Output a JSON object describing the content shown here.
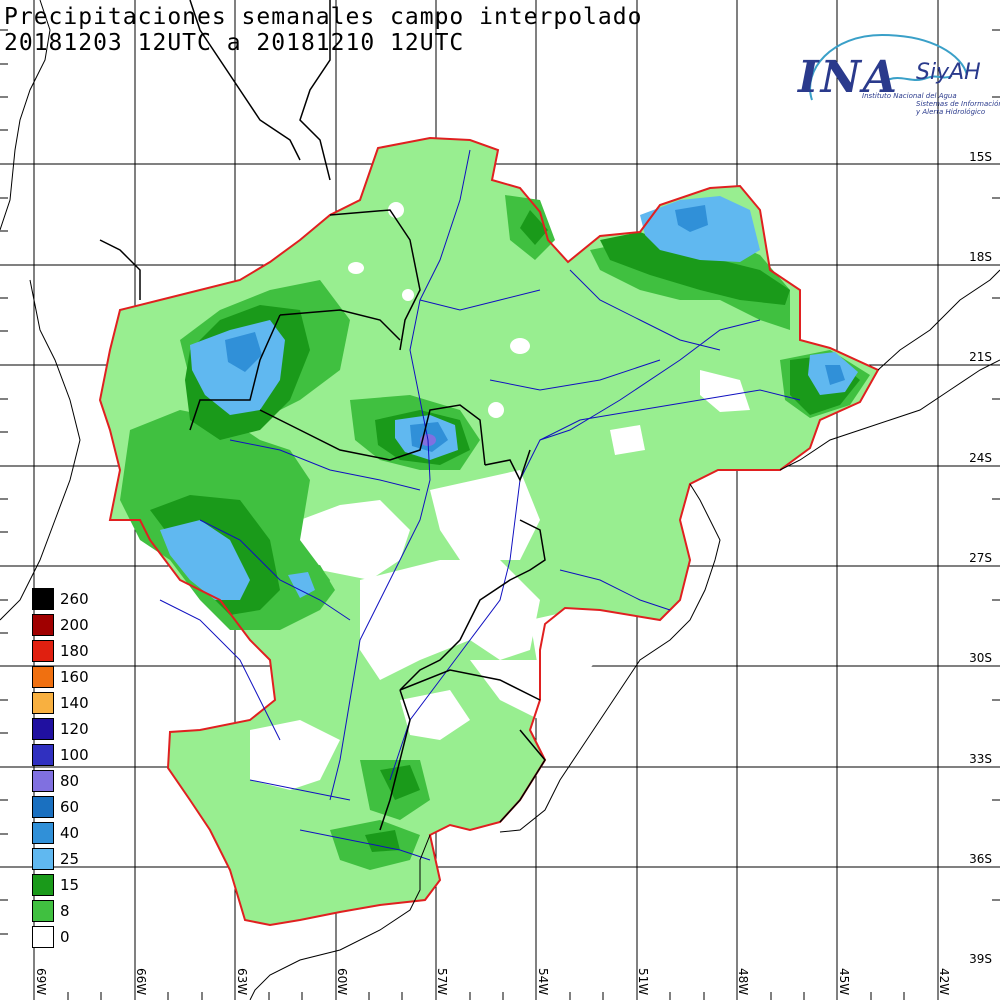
{
  "title": {
    "line1": "Precipitaciones semanales campo interpolado",
    "line2": "20181203 12UTC a 20181210 12UTC"
  },
  "logo": {
    "main": "INA",
    "brand": "SiyAH",
    "institution": "Instituto Nacional del Agua",
    "system_line1": "Sistemas de Información",
    "system_line2": "y Alerta Hidrológico"
  },
  "lat_labels": [
    "15S",
    "18S",
    "21S",
    "24S",
    "27S",
    "30S",
    "33S",
    "36S",
    "39S"
  ],
  "lon_labels": [
    "69W",
    "66W",
    "63W",
    "60W",
    "57W",
    "54W",
    "51W",
    "48W",
    "45W",
    "42W"
  ],
  "legend": {
    "items": [
      {
        "label": "260",
        "color": "#000000"
      },
      {
        "label": "200",
        "color": "#a00000"
      },
      {
        "label": "180",
        "color": "#e02010"
      },
      {
        "label": "160",
        "color": "#f07010"
      },
      {
        "label": "140",
        "color": "#f8b040"
      },
      {
        "label": "120",
        "color": "#2010a0"
      },
      {
        "label": "100",
        "color": "#3030c0"
      },
      {
        "label": "80",
        "color": "#8070e0"
      },
      {
        "label": "60",
        "color": "#1a70c0"
      },
      {
        "label": "40",
        "color": "#3090d8"
      },
      {
        "label": "25",
        "color": "#60b8f0"
      },
      {
        "label": "15",
        "color": "#1a9a1a"
      },
      {
        "label": "8",
        "color": "#40c040"
      },
      {
        "label": "0",
        "color": "#ffffff"
      }
    ]
  },
  "colors": {
    "light_green": "#98ee90",
    "basin_outline": "#e02020",
    "rivers": "#1010c0",
    "borders": "#000000"
  }
}
